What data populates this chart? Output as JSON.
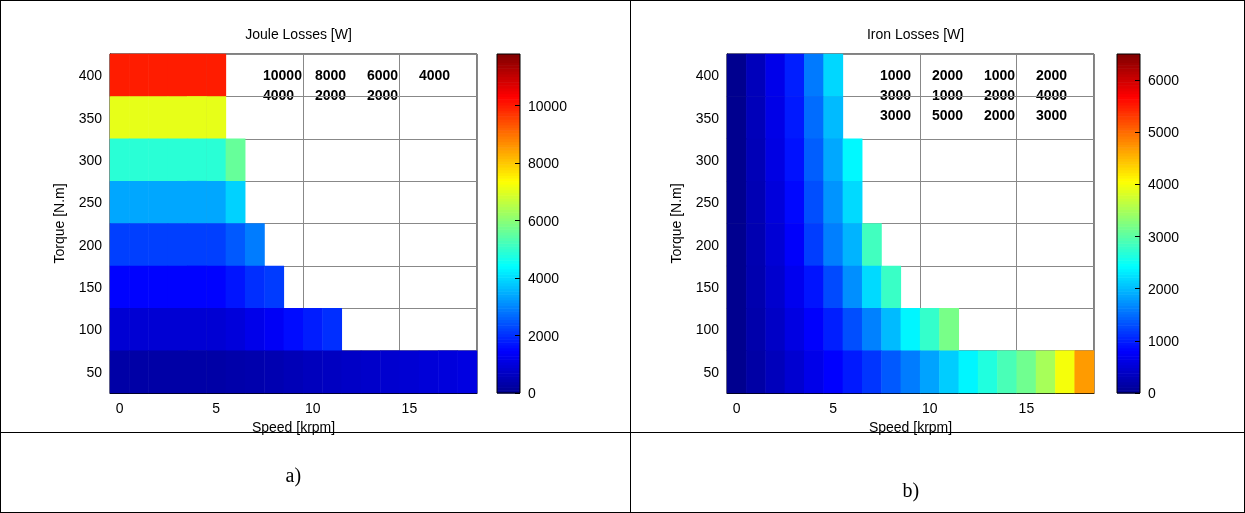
{
  "chart_data": [
    {
      "type": "heatmap",
      "title": "Joule Losses [W]",
      "subtitle": "a)",
      "xlabel": "Speed [krpm]",
      "ylabel": "Torque [N.m]",
      "categories": [
        "0",
        null,
        null,
        null,
        null,
        "5",
        null,
        null,
        null,
        null,
        "10",
        null,
        null,
        null,
        null,
        "15",
        null,
        null,
        null
      ],
      "y_categories": [
        "400",
        "350",
        "300",
        "250",
        "200",
        "150",
        "100",
        "50"
      ],
      "cells": [
        [
          10000,
          10000,
          10000,
          10000,
          10000,
          10000,
          null,
          null,
          null,
          null,
          null,
          null,
          null,
          null,
          null,
          null,
          null,
          null,
          null
        ],
        [
          7100,
          7100,
          7100,
          7100,
          7100,
          7100,
          null,
          null,
          null,
          null,
          null,
          null,
          null,
          null,
          null,
          null,
          null,
          null,
          null
        ],
        [
          4900,
          4900,
          4900,
          4900,
          4900,
          4900,
          5600,
          null,
          null,
          null,
          null,
          null,
          null,
          null,
          null,
          null,
          null,
          null,
          null
        ],
        [
          3400,
          3400,
          3400,
          3400,
          3400,
          3400,
          3900,
          null,
          null,
          null,
          null,
          null,
          null,
          null,
          null,
          null,
          null,
          null,
          null
        ],
        [
          2200,
          2200,
          2200,
          2200,
          2200,
          2200,
          2500,
          2900,
          null,
          null,
          null,
          null,
          null,
          null,
          null,
          null,
          null,
          null,
          null
        ],
        [
          1500,
          1500,
          1500,
          1500,
          1500,
          1500,
          1700,
          2000,
          2150,
          null,
          null,
          null,
          null,
          null,
          null,
          null,
          null,
          null,
          null
        ],
        [
          900,
          900,
          900,
          900,
          900,
          900,
          1000,
          1200,
          1350,
          1600,
          1800,
          2000,
          null,
          null,
          null,
          null,
          null,
          null,
          null
        ],
        [
          300,
          300,
          300,
          300,
          300,
          300,
          350,
          400,
          450,
          530,
          600,
          660,
          720,
          780,
          840,
          900,
          960,
          1020,
          1080
        ]
      ],
      "clim": [
        0,
        11800
      ],
      "cticks": [
        0,
        2000,
        4000,
        6000,
        8000,
        10000
      ],
      "grid": true,
      "annotations": [
        "10000",
        "8000",
        "6000",
        "4000",
        "4000",
        "2000",
        "2000"
      ]
    },
    {
      "type": "heatmap",
      "title": "Iron Losses [W]",
      "subtitle": "b)",
      "xlabel": "Speed [krpm]",
      "ylabel": "Torque [N.m]",
      "categories": [
        "0",
        null,
        null,
        null,
        null,
        "5",
        null,
        null,
        null,
        null,
        "10",
        null,
        null,
        null,
        null,
        "15",
        null,
        null,
        null
      ],
      "y_categories": [
        "400",
        "350",
        "300",
        "250",
        "200",
        "150",
        "100",
        "50"
      ],
      "cells": [
        [
          0,
          320,
          660,
          1000,
          1590,
          2180,
          null,
          null,
          null,
          null,
          null,
          null,
          null,
          null,
          null,
          null,
          null,
          null,
          null
        ],
        [
          0,
          310,
          640,
          970,
          1500,
          2000,
          null,
          null,
          null,
          null,
          null,
          null,
          null,
          null,
          null,
          null,
          null,
          null,
          null
        ],
        [
          0,
          290,
          610,
          920,
          1410,
          1880,
          2400,
          null,
          null,
          null,
          null,
          null,
          null,
          null,
          null,
          null,
          null,
          null,
          null
        ],
        [
          0,
          270,
          560,
          860,
          1310,
          1750,
          2200,
          null,
          null,
          null,
          null,
          null,
          null,
          null,
          null,
          null,
          null,
          null,
          null
        ],
        [
          0,
          250,
          510,
          780,
          1200,
          1620,
          1960,
          2850,
          null,
          null,
          null,
          null,
          null,
          null,
          null,
          null,
          null,
          null,
          null
        ],
        [
          0,
          230,
          460,
          700,
          930,
          1280,
          1720,
          2200,
          2800,
          null,
          null,
          null,
          null,
          null,
          null,
          null,
          null,
          null,
          null
        ],
        [
          0,
          200,
          400,
          600,
          800,
          1000,
          1310,
          1630,
          2000,
          2380,
          2770,
          3200,
          null,
          null,
          null,
          null,
          null,
          null,
          null
        ],
        [
          0,
          160,
          320,
          480,
          650,
          810,
          970,
          1150,
          1380,
          1600,
          1850,
          2120,
          2380,
          2640,
          2900,
          3150,
          3500,
          4000,
          4700
        ]
      ],
      "clim": [
        0,
        6500
      ],
      "cticks": [
        0,
        1000,
        2000,
        3000,
        4000,
        5000,
        6000
      ],
      "grid": true,
      "annotations": [
        "1000",
        "2000",
        "1000",
        "2000",
        "3000",
        "1000",
        "2000",
        "4000",
        "3000",
        "5000",
        "2000",
        "3000"
      ]
    }
  ]
}
